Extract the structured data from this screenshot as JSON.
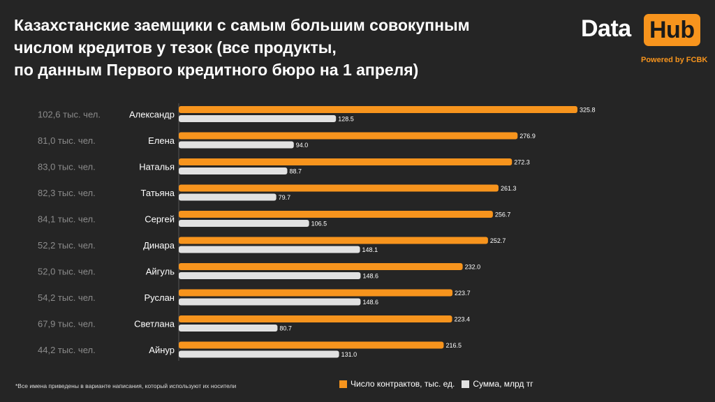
{
  "title": {
    "line1": "Казахстанские заемщики с самым большим совокупным",
    "line2": "числом кредитов у тезок (все продукты,",
    "line3": "по данным Первого кредитного бюро на 1 апреля)"
  },
  "logo": {
    "data": "Data",
    "hub": "Hub",
    "powered": "Powered by FCBK"
  },
  "footnote": "*Все имена приведены в варианте написания, который используют их носители",
  "legend": {
    "contracts": "Число контрактов, тыс. ед.",
    "sum": "Сумма, млрд тг"
  },
  "colors": {
    "background": "#252525",
    "contracts": "#f7941d",
    "sum": "#e1e1e1",
    "people_text": "#8c8c8c"
  },
  "chart_data": {
    "type": "bar",
    "orientation": "horizontal",
    "categories": [
      "Александр",
      "Елена",
      "Наталья",
      "Татьяна",
      "Сергей",
      "Динара",
      "Айгуль",
      "Руслан",
      "Светлана",
      "Айнур"
    ],
    "people": [
      "102,6 тыс. чел.",
      "81,0 тыс. чел.",
      "83,0 тыс. чел.",
      "82,3 тыс. чел.",
      "84,1 тыс. чел.",
      "52,2 тыс. чел.",
      "52,0 тыс. чел.",
      "54,2 тыс. чел.",
      "67,9 тыс. чел.",
      "44,2 тыс. чел."
    ],
    "series": [
      {
        "name": "Число контрактов, тыс. ед.",
        "values": [
          325.8,
          276.9,
          272.3,
          261.3,
          256.7,
          252.7,
          232.0,
          223.7,
          223.4,
          216.5
        ],
        "labels": [
          "325.8",
          "276.9",
          "272.3",
          "261.3",
          "256.7",
          "252.7",
          "232.0",
          "223.7",
          "223.4",
          "216.5"
        ]
      },
      {
        "name": "Сумма, млрд тг",
        "values": [
          128.5,
          94.0,
          88.7,
          79.7,
          106.5,
          148.1,
          148.6,
          148.6,
          80.7,
          131.0
        ],
        "labels": [
          "128.5",
          "94.0",
          "88.7",
          "79.7",
          "106.5",
          "148.1",
          "148.6",
          "148.6",
          "80.7",
          "131.0"
        ]
      }
    ],
    "xlim": [
      0,
      325.8
    ],
    "title": "Казахстанские заемщики с самым большим совокупным числом кредитов у тезок"
  }
}
